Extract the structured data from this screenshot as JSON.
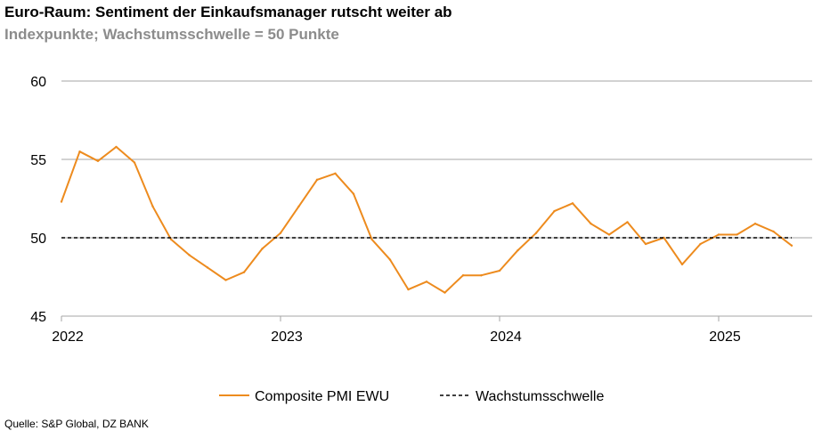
{
  "header": {
    "title": "Euro-Raum: Sentiment der Einkaufsmanager rutscht weiter ab",
    "subtitle": "Indexpunkte; Wachstumsschwelle = 50 Punkte"
  },
  "footer": {
    "source": "Quelle: S&P Global, DZ BANK"
  },
  "colors": {
    "pmi": "#ED8B1E",
    "threshold": "#000000",
    "grid": "#A6A6A6"
  },
  "chart_data": {
    "type": "line",
    "title": "Euro-Raum: Sentiment der Einkaufsmanager rutscht weiter ab",
    "subtitle": "Indexpunkte; Wachstumsschwelle = 50 Punkte",
    "xlabel": "",
    "ylabel": "",
    "ylim": [
      45,
      60
    ],
    "yticks": [
      "45",
      "50",
      "55",
      "60"
    ],
    "xticks": [
      "2022",
      "2023",
      "2024",
      "2025"
    ],
    "x_start": "2022-01",
    "grid": true,
    "legend_position": "bottom",
    "series": [
      {
        "name": "Composite PMI EWU",
        "style": "solid",
        "x": [
          "2022-01",
          "2022-02",
          "2022-03",
          "2022-04",
          "2022-05",
          "2022-06",
          "2022-07",
          "2022-08",
          "2022-09",
          "2022-10",
          "2022-11",
          "2022-12",
          "2023-01",
          "2023-02",
          "2023-03",
          "2023-04",
          "2023-05",
          "2023-06",
          "2023-07",
          "2023-08",
          "2023-09",
          "2023-10",
          "2023-11",
          "2023-12",
          "2024-01",
          "2024-02",
          "2024-03",
          "2024-04",
          "2024-05",
          "2024-06",
          "2024-07",
          "2024-08",
          "2024-09",
          "2024-10",
          "2024-11",
          "2024-12",
          "2025-01",
          "2025-02",
          "2025-03",
          "2025-04",
          "2025-05"
        ],
        "values": [
          52.3,
          55.5,
          54.9,
          55.8,
          54.8,
          52.0,
          49.9,
          48.9,
          48.1,
          47.3,
          47.8,
          49.3,
          50.3,
          52.0,
          53.7,
          54.1,
          52.8,
          49.9,
          48.6,
          46.7,
          47.2,
          46.5,
          47.6,
          47.6,
          47.9,
          49.2,
          50.3,
          51.7,
          52.2,
          50.9,
          50.2,
          51.0,
          49.6,
          50.0,
          48.3,
          49.6,
          50.2,
          50.2,
          50.9,
          50.4,
          49.5
        ]
      },
      {
        "name": "Wachstumsschwelle",
        "style": "dashed",
        "x": [
          "2022-01",
          "2025-05"
        ],
        "values": [
          50,
          50
        ]
      }
    ]
  }
}
